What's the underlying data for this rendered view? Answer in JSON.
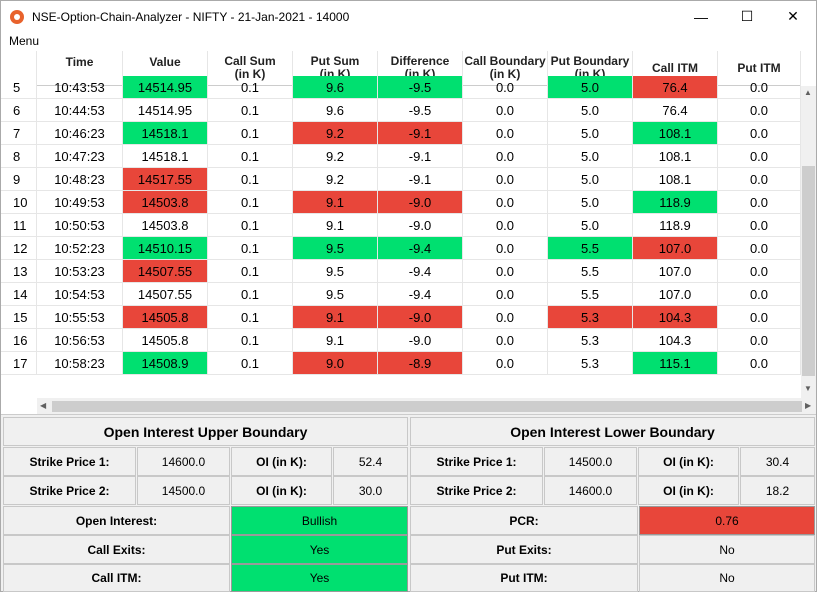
{
  "window": {
    "title": "NSE-Option-Chain-Analyzer - NIFTY - 21-Jan-2021 - 14000"
  },
  "menu": {
    "label": "Menu"
  },
  "table": {
    "headers": [
      "Time",
      "Value",
      "Call Sum\n(in K)",
      "Put Sum\n(in K)",
      "Difference\n(in K)",
      "Call Boundary\n(in K)",
      "Put Boundary\n(in K)",
      "Call ITM",
      "Put ITM"
    ],
    "rows": [
      {
        "n": "5",
        "time": "10:43:53",
        "value": "14514.95",
        "call_sum": "0.1",
        "put_sum": "9.6",
        "difference": "-9.5",
        "call_boundary": "0.0",
        "put_boundary": "5.0",
        "call_itm": "76.4",
        "put_itm": "0.0",
        "c": {
          "value": "g",
          "put_sum": "g",
          "difference": "g",
          "put_boundary": "g",
          "call_itm": "r"
        }
      },
      {
        "n": "6",
        "time": "10:44:53",
        "value": "14514.95",
        "call_sum": "0.1",
        "put_sum": "9.6",
        "difference": "-9.5",
        "call_boundary": "0.0",
        "put_boundary": "5.0",
        "call_itm": "76.4",
        "put_itm": "0.0",
        "c": {}
      },
      {
        "n": "7",
        "time": "10:46:23",
        "value": "14518.1",
        "call_sum": "0.1",
        "put_sum": "9.2",
        "difference": "-9.1",
        "call_boundary": "0.0",
        "put_boundary": "5.0",
        "call_itm": "108.1",
        "put_itm": "0.0",
        "c": {
          "value": "g",
          "put_sum": "r",
          "difference": "r",
          "call_itm": "g"
        }
      },
      {
        "n": "8",
        "time": "10:47:23",
        "value": "14518.1",
        "call_sum": "0.1",
        "put_sum": "9.2",
        "difference": "-9.1",
        "call_boundary": "0.0",
        "put_boundary": "5.0",
        "call_itm": "108.1",
        "put_itm": "0.0",
        "c": {}
      },
      {
        "n": "9",
        "time": "10:48:23",
        "value": "14517.55",
        "call_sum": "0.1",
        "put_sum": "9.2",
        "difference": "-9.1",
        "call_boundary": "0.0",
        "put_boundary": "5.0",
        "call_itm": "108.1",
        "put_itm": "0.0",
        "c": {
          "value": "r"
        }
      },
      {
        "n": "10",
        "time": "10:49:53",
        "value": "14503.8",
        "call_sum": "0.1",
        "put_sum": "9.1",
        "difference": "-9.0",
        "call_boundary": "0.0",
        "put_boundary": "5.0",
        "call_itm": "118.9",
        "put_itm": "0.0",
        "c": {
          "value": "r",
          "put_sum": "r",
          "difference": "r",
          "call_itm": "g"
        }
      },
      {
        "n": "11",
        "time": "10:50:53",
        "value": "14503.8",
        "call_sum": "0.1",
        "put_sum": "9.1",
        "difference": "-9.0",
        "call_boundary": "0.0",
        "put_boundary": "5.0",
        "call_itm": "118.9",
        "put_itm": "0.0",
        "c": {}
      },
      {
        "n": "12",
        "time": "10:52:23",
        "value": "14510.15",
        "call_sum": "0.1",
        "put_sum": "9.5",
        "difference": "-9.4",
        "call_boundary": "0.0",
        "put_boundary": "5.5",
        "call_itm": "107.0",
        "put_itm": "0.0",
        "c": {
          "value": "g",
          "put_sum": "g",
          "difference": "g",
          "put_boundary": "g",
          "call_itm": "r"
        }
      },
      {
        "n": "13",
        "time": "10:53:23",
        "value": "14507.55",
        "call_sum": "0.1",
        "put_sum": "9.5",
        "difference": "-9.4",
        "call_boundary": "0.0",
        "put_boundary": "5.5",
        "call_itm": "107.0",
        "put_itm": "0.0",
        "c": {
          "value": "r"
        }
      },
      {
        "n": "14",
        "time": "10:54:53",
        "value": "14507.55",
        "call_sum": "0.1",
        "put_sum": "9.5",
        "difference": "-9.4",
        "call_boundary": "0.0",
        "put_boundary": "5.5",
        "call_itm": "107.0",
        "put_itm": "0.0",
        "c": {}
      },
      {
        "n": "15",
        "time": "10:55:53",
        "value": "14505.8",
        "call_sum": "0.1",
        "put_sum": "9.1",
        "difference": "-9.0",
        "call_boundary": "0.0",
        "put_boundary": "5.3",
        "call_itm": "104.3",
        "put_itm": "0.0",
        "c": {
          "value": "r",
          "put_sum": "r",
          "difference": "r",
          "put_boundary": "r",
          "call_itm": "r"
        }
      },
      {
        "n": "16",
        "time": "10:56:53",
        "value": "14505.8",
        "call_sum": "0.1",
        "put_sum": "9.1",
        "difference": "-9.0",
        "call_boundary": "0.0",
        "put_boundary": "5.3",
        "call_itm": "104.3",
        "put_itm": "0.0",
        "c": {}
      },
      {
        "n": "17",
        "time": "10:58:23",
        "value": "14508.9",
        "call_sum": "0.1",
        "put_sum": "9.0",
        "difference": "-8.9",
        "call_boundary": "0.0",
        "put_boundary": "5.3",
        "call_itm": "115.1",
        "put_itm": "0.0",
        "c": {
          "value": "g",
          "put_sum": "r",
          "difference": "r",
          "call_itm": "g"
        }
      }
    ]
  },
  "upper": {
    "title": "Open Interest Upper Boundary",
    "strike1_label": "Strike Price 1:",
    "strike1_value": "14600.0",
    "oi1_label": "OI (in K):",
    "oi1_value": "52.4",
    "strike2_label": "Strike Price 2:",
    "strike2_value": "14500.0",
    "oi2_label": "OI (in K):",
    "oi2_value": "30.0"
  },
  "lower": {
    "title": "Open Interest Lower Boundary",
    "strike1_label": "Strike Price 1:",
    "strike1_value": "14500.0",
    "oi1_label": "OI (in K):",
    "oi1_value": "30.4",
    "strike2_label": "Strike Price 2:",
    "strike2_value": "14600.0",
    "oi2_label": "OI (in K):",
    "oi2_value": "18.2"
  },
  "status": {
    "open_interest_label": "Open Interest:",
    "open_interest_value": "Bullish",
    "call_exits_label": "Call Exits:",
    "call_exits_value": "Yes",
    "call_itm_label": "Call ITM:",
    "call_itm_value": "Yes",
    "pcr_label": "PCR:",
    "pcr_value": "0.76",
    "put_exits_label": "Put Exits:",
    "put_exits_value": "No",
    "put_itm_label": "Put ITM:",
    "put_itm_value": "No"
  },
  "colors": {
    "green": "#00e070",
    "red": "#e8463a"
  }
}
